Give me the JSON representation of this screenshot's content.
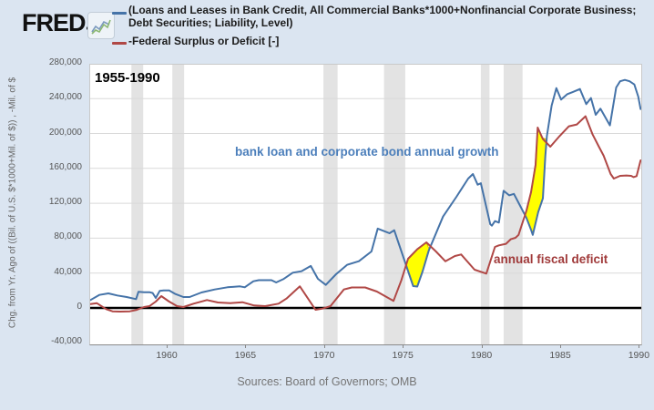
{
  "header": {
    "logo": "FRED",
    "legend": [
      {
        "color": "#4573a8",
        "label": "(Loans and Leases in Bank Credit, All Commercial Banks*1000+Nonfinancial Corporate Business; Debt Securities; Liability, Level)"
      },
      {
        "color": "#b04846",
        "label": "-Federal Surplus or Deficit [-]"
      }
    ]
  },
  "annotations": {
    "period": "1955-1990",
    "blue_note": "bank loan and corporate bond annual growth",
    "red_note": "annual fiscal deficit"
  },
  "y_axis": {
    "title": "Chg. from Yr. Ago of ((Bil. of U.S. $*1000+Mil. of $)) , -Mil. of $",
    "ticks": [
      {
        "label": "280,000",
        "value": 280000
      },
      {
        "label": "240,000",
        "value": 240000
      },
      {
        "label": "200,000",
        "value": 200000
      },
      {
        "label": "160,000",
        "value": 160000
      },
      {
        "label": "120,000",
        "value": 120000
      },
      {
        "label": "80,000",
        "value": 80000
      },
      {
        "label": "40,000",
        "value": 40000
      },
      {
        "label": "0",
        "value": 0
      },
      {
        "label": "-40,000",
        "value": -40000
      }
    ]
  },
  "x_axis": {
    "ticks": [
      {
        "label": "1960",
        "year": 1960
      },
      {
        "label": "1965",
        "year": 1965
      },
      {
        "label": "1970",
        "year": 1970
      },
      {
        "label": "1975",
        "year": 1975
      },
      {
        "label": "1980",
        "year": 1980
      },
      {
        "label": "1985",
        "year": 1985
      },
      {
        "label": "1990",
        "year": 1990
      }
    ]
  },
  "footer": {
    "source": "Sources: Board of Governors; OMB"
  },
  "chart_data": {
    "type": "line",
    "title": "1955-1990",
    "xlabel": "",
    "ylabel": "Chg. from Yr. Ago of ((Bil. of U.S. $*1000+Mil. of $)) , -Mil. of $",
    "xlim": [
      1955,
      1990.1
    ],
    "ylim": [
      -42000,
      280000
    ],
    "grid": true,
    "legend_position": "top",
    "colors": {
      "background": "#dbe5f1",
      "plot_background": "#ffffff",
      "grid": "#d9d9d9",
      "recession": "#e3e3e3",
      "highlight": "#ffff00",
      "highlight_edge": "#d8bb00",
      "zero_line": "#000000"
    },
    "recession_bands": [
      [
        1957.7,
        1958.45
      ],
      [
        1960.3,
        1961.05
      ],
      [
        1969.9,
        1970.8
      ],
      [
        1973.75,
        1975.1
      ],
      [
        1979.9,
        1980.45
      ],
      [
        1981.35,
        1982.55
      ]
    ],
    "highlight_patches": [
      {
        "name": "deficit-exceeds-growth-1975-76",
        "points": [
          [
            1975.13,
            48000
          ],
          [
            1975.28,
            56400
          ],
          [
            1975.86,
            67300
          ],
          [
            1976.44,
            74900
          ],
          [
            1976.61,
            67900
          ],
          [
            1976.49,
            61600
          ],
          [
            1976.2,
            41800
          ],
          [
            1975.86,
            24500
          ],
          [
            1975.63,
            25100
          ],
          [
            1975.33,
            40700
          ]
        ]
      },
      {
        "name": "deficit-exceeds-growth-1983",
        "points": [
          [
            1982.72,
            107500
          ],
          [
            1982.8,
            111700
          ],
          [
            1983.09,
            132600
          ],
          [
            1983.35,
            163900
          ],
          [
            1983.51,
            206700
          ],
          [
            1983.78,
            195200
          ],
          [
            1984.1,
            193100
          ],
          [
            1984.01,
            174300
          ],
          [
            1983.84,
            125300
          ],
          [
            1983.55,
            109600
          ],
          [
            1983.2,
            83500
          ],
          [
            1983.09,
            88700
          ],
          [
            1982.8,
            103400
          ]
        ]
      }
    ],
    "series": [
      {
        "name": "(Loans and Leases in Bank Credit, All Commercial Banks*1000+Nonfinancial Corporate Business; Debt Securities; Liability, Level)",
        "color": "#4573a8",
        "points": [
          [
            1955.1,
            9100
          ],
          [
            1955.66,
            14900
          ],
          [
            1956.24,
            16700
          ],
          [
            1956.8,
            14300
          ],
          [
            1957.4,
            12500
          ],
          [
            1958.0,
            10100
          ],
          [
            1958.15,
            18500
          ],
          [
            1958.5,
            18100
          ],
          [
            1958.85,
            18100
          ],
          [
            1959.05,
            17100
          ],
          [
            1959.25,
            11500
          ],
          [
            1959.5,
            19500
          ],
          [
            1959.75,
            20100
          ],
          [
            1960.1,
            20100
          ],
          [
            1960.5,
            16000
          ],
          [
            1961.0,
            12500
          ],
          [
            1961.4,
            12500
          ],
          [
            1962.15,
            17800
          ],
          [
            1963.0,
            21200
          ],
          [
            1963.8,
            23700
          ],
          [
            1964.6,
            24700
          ],
          [
            1964.9,
            23700
          ],
          [
            1965.45,
            30600
          ],
          [
            1965.8,
            31900
          ],
          [
            1966.6,
            31900
          ],
          [
            1966.9,
            29200
          ],
          [
            1967.35,
            33000
          ],
          [
            1967.95,
            40400
          ],
          [
            1968.5,
            42100
          ],
          [
            1969.1,
            48100
          ],
          [
            1969.55,
            33400
          ],
          [
            1970.05,
            26400
          ],
          [
            1970.7,
            38600
          ],
          [
            1971.4,
            49400
          ],
          [
            1972.15,
            53600
          ],
          [
            1972.95,
            64700
          ],
          [
            1973.35,
            91000
          ],
          [
            1974.1,
            85600
          ],
          [
            1974.4,
            89100
          ],
          [
            1975.15,
            49100
          ],
          [
            1975.6,
            25100
          ],
          [
            1975.86,
            24500
          ],
          [
            1976.2,
            41800
          ],
          [
            1976.6,
            66000
          ],
          [
            1977.5,
            104800
          ],
          [
            1978.35,
            127400
          ],
          [
            1979.1,
            148300
          ],
          [
            1979.4,
            153500
          ],
          [
            1979.7,
            141300
          ],
          [
            1979.9,
            143000
          ],
          [
            1980.5,
            96100
          ],
          [
            1980.6,
            94300
          ],
          [
            1980.8,
            99500
          ],
          [
            1981.05,
            97900
          ],
          [
            1981.35,
            134300
          ],
          [
            1981.7,
            129100
          ],
          [
            1982.0,
            130800
          ],
          [
            1982.4,
            117000
          ],
          [
            1982.8,
            103100
          ],
          [
            1983.1,
            89100
          ],
          [
            1983.2,
            83800
          ],
          [
            1983.55,
            110000
          ],
          [
            1983.84,
            125600
          ],
          [
            1984.0,
            174400
          ],
          [
            1984.1,
            197000
          ],
          [
            1984.4,
            231900
          ],
          [
            1984.7,
            252000
          ],
          [
            1985.0,
            238900
          ],
          [
            1985.4,
            245100
          ],
          [
            1985.75,
            247600
          ],
          [
            1986.2,
            251000
          ],
          [
            1986.6,
            233600
          ],
          [
            1986.9,
            240600
          ],
          [
            1987.2,
            221400
          ],
          [
            1987.5,
            228400
          ],
          [
            1988.1,
            209300
          ],
          [
            1988.5,
            252700
          ],
          [
            1988.75,
            259800
          ],
          [
            1989.05,
            261400
          ],
          [
            1989.35,
            259800
          ],
          [
            1989.65,
            256200
          ],
          [
            1989.9,
            242300
          ],
          [
            1990.05,
            228000
          ]
        ]
      },
      {
        "name": "-Federal Surplus or Deficit [-]",
        "color": "#b04846",
        "points": [
          [
            1955.1,
            4500
          ],
          [
            1955.5,
            5500
          ],
          [
            1956.1,
            -1400
          ],
          [
            1956.5,
            -3900
          ],
          [
            1957.0,
            -4200
          ],
          [
            1957.6,
            -3900
          ],
          [
            1958.0,
            -2400
          ],
          [
            1958.5,
            1000
          ],
          [
            1958.85,
            2100
          ],
          [
            1959.25,
            7300
          ],
          [
            1959.6,
            13600
          ],
          [
            1960.1,
            7300
          ],
          [
            1960.6,
            2100
          ],
          [
            1961.0,
            1000
          ],
          [
            1961.65,
            4900
          ],
          [
            1962.5,
            9100
          ],
          [
            1963.2,
            6300
          ],
          [
            1964.0,
            5500
          ],
          [
            1964.75,
            6600
          ],
          [
            1965.5,
            2800
          ],
          [
            1966.2,
            2100
          ],
          [
            1967.05,
            4900
          ],
          [
            1967.55,
            10800
          ],
          [
            1968.4,
            24700
          ],
          [
            1969.4,
            -2100
          ],
          [
            1969.85,
            -700
          ],
          [
            1970.35,
            2100
          ],
          [
            1971.2,
            21200
          ],
          [
            1971.7,
            23500
          ],
          [
            1972.55,
            23500
          ],
          [
            1973.3,
            18800
          ],
          [
            1974.35,
            8000
          ],
          [
            1974.85,
            31600
          ],
          [
            1975.28,
            56400
          ],
          [
            1975.86,
            67300
          ],
          [
            1976.44,
            75200
          ],
          [
            1977.05,
            64700
          ],
          [
            1977.65,
            53500
          ],
          [
            1978.25,
            59500
          ],
          [
            1978.65,
            61300
          ],
          [
            1979.5,
            43900
          ],
          [
            1980.25,
            39400
          ],
          [
            1980.55,
            56100
          ],
          [
            1980.8,
            70000
          ],
          [
            1981.05,
            71800
          ],
          [
            1981.5,
            73500
          ],
          [
            1981.8,
            78700
          ],
          [
            1982.1,
            80400
          ],
          [
            1982.3,
            83800
          ],
          [
            1982.8,
            111800
          ],
          [
            1983.09,
            132600
          ],
          [
            1983.38,
            164000
          ],
          [
            1983.51,
            206800
          ],
          [
            1983.84,
            193600
          ],
          [
            1984.32,
            184900
          ],
          [
            1984.9,
            197000
          ],
          [
            1985.5,
            208200
          ],
          [
            1986.0,
            210300
          ],
          [
            1986.55,
            219700
          ],
          [
            1987.0,
            198800
          ],
          [
            1987.4,
            184900
          ],
          [
            1987.7,
            174500
          ],
          [
            1988.15,
            153500
          ],
          [
            1988.35,
            148300
          ],
          [
            1988.75,
            151400
          ],
          [
            1989.15,
            151900
          ],
          [
            1989.45,
            151400
          ],
          [
            1989.6,
            150000
          ],
          [
            1989.8,
            151100
          ],
          [
            1990.05,
            169200
          ]
        ]
      }
    ]
  }
}
